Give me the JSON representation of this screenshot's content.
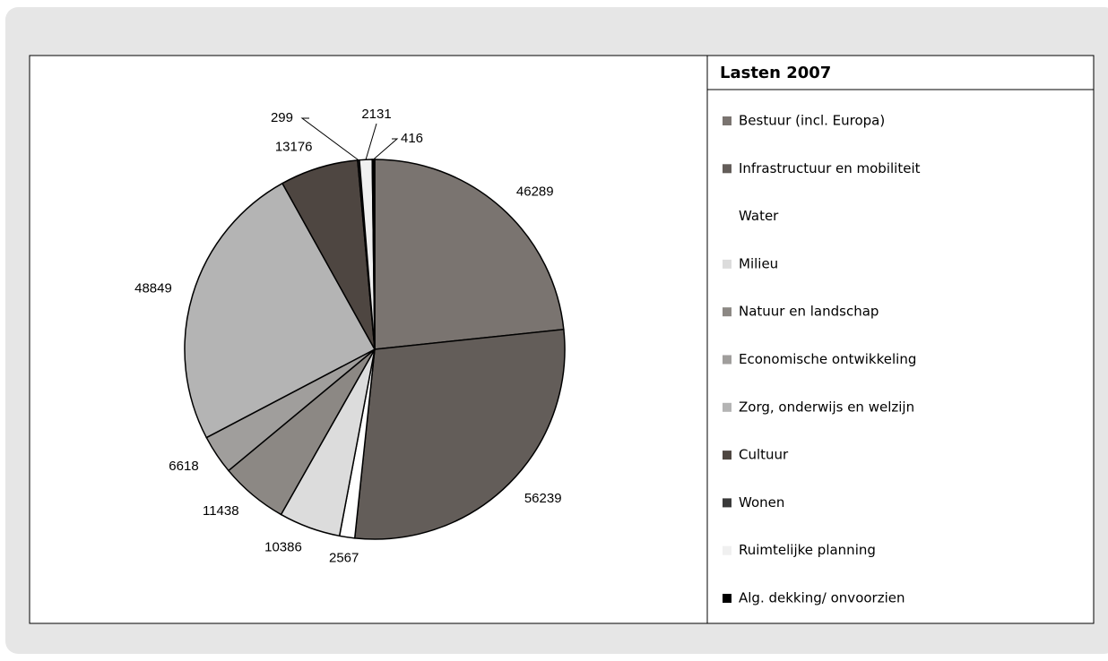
{
  "chart_data": {
    "type": "pie",
    "legend_title": "Lasten 2007",
    "categories": [
      "Bestuur (incl. Europa)",
      "Infrastructuur en mobiliteit",
      "Water",
      "Milieu",
      "Natuur en landschap",
      "Economische ontwikkeling",
      "Zorg, onderwijs en welzijn",
      "Cultuur",
      "Wonen",
      "Ruimtelijke planning",
      "Alg. dekking/ onvoorzien"
    ],
    "values": [
      46289,
      56239,
      2567,
      10386,
      11438,
      6618,
      48849,
      13176,
      299,
      2131,
      416
    ],
    "colors": [
      "#7a7470",
      "#635d59",
      "#ffffff",
      "#dcdcdc",
      "#8c8884",
      "#a09e9c",
      "#b4b4b4",
      "#4e4641",
      "#3a3a3a",
      "#f0f0f0",
      "#000000"
    ],
    "legend": "right"
  }
}
